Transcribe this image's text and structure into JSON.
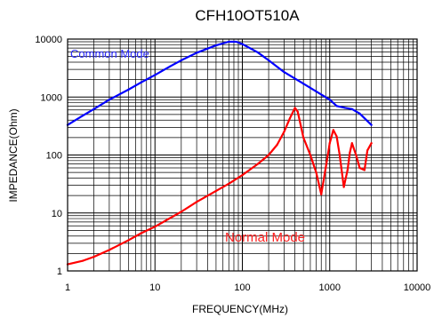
{
  "chart_data": {
    "type": "line",
    "title": "CFH10OT510A",
    "xlabel": "FREQUENCY(MHz)",
    "ylabel": "IMPEDANCE(Ohm)",
    "xscale": "log",
    "yscale": "log",
    "xlim": [
      1,
      10000
    ],
    "ylim": [
      1,
      10000
    ],
    "grid": true,
    "x_ticks": [
      1,
      10,
      100,
      1000,
      10000
    ],
    "x_tick_labels": [
      "1",
      "10",
      "100",
      "1000",
      "10000"
    ],
    "y_ticks": [
      1,
      10,
      100,
      1000,
      10000
    ],
    "y_tick_labels": [
      "1",
      "10",
      "100",
      "1000",
      "10000"
    ],
    "annotations": [
      {
        "text": "Common Mode",
        "color": "#2a2aff"
      },
      {
        "text": "Normal Mode",
        "color": "#ff2020"
      }
    ],
    "series": [
      {
        "color": "#0000ff",
        "x": [
          1,
          1.5,
          2,
          3,
          5,
          7,
          10,
          15,
          20,
          30,
          50,
          70,
          85,
          100,
          150,
          200,
          300,
          500,
          700,
          1000,
          1200,
          1500,
          1800,
          2200,
          3000
        ],
        "y": [
          330,
          480,
          620,
          900,
          1350,
          1800,
          2400,
          3400,
          4300,
          5800,
          7800,
          9000,
          9000,
          8200,
          5900,
          4300,
          2700,
          1700,
          1250,
          900,
          700,
          650,
          620,
          520,
          330
        ]
      },
      {
        "color": "#ff0000",
        "x": [
          1,
          1.5,
          2,
          3,
          5,
          7,
          10,
          20,
          30,
          50,
          70,
          100,
          150,
          200,
          250,
          300,
          350,
          400,
          430,
          500,
          600,
          700,
          800,
          900,
          1000,
          1100,
          1200,
          1300,
          1450,
          1600,
          1700,
          1800,
          2000,
          2200,
          2500,
          2700,
          3000
        ],
        "y": [
          1.3,
          1.5,
          1.75,
          2.3,
          3.4,
          4.5,
          5.8,
          10.5,
          15.5,
          24,
          32,
          45,
          70,
          100,
          150,
          250,
          430,
          650,
          560,
          200,
          100,
          50,
          21,
          60,
          160,
          270,
          210,
          100,
          28,
          55,
          110,
          160,
          100,
          60,
          55,
          120,
          160
        ]
      }
    ]
  }
}
